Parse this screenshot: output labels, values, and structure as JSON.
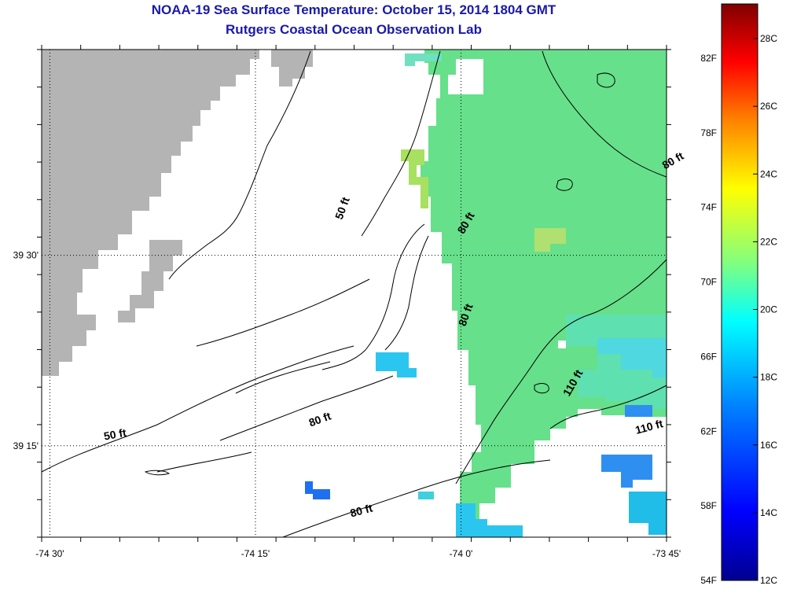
{
  "title": "NOAA-19 Sea Surface Temperature:  October 15, 2014 1804 GMT",
  "subtitle": "Rutgers Coastal Ocean Observation Lab",
  "axes": {
    "lon_ticks": [
      {
        "value": -74.5,
        "label": "-74 30'"
      },
      {
        "value": -74.25,
        "label": "-74 15'"
      },
      {
        "value": -74.0,
        "label": "-74 0'"
      },
      {
        "value": -73.75,
        "label": "-73 45'"
      }
    ],
    "lat_ticks": [
      {
        "value": 39.5,
        "label": "39 30'"
      },
      {
        "value": 39.25,
        "label": "39 15'"
      }
    ],
    "lon_range": [
      -74.51,
      -73.75
    ],
    "lat_range": [
      39.13,
      39.77
    ],
    "grid": "dotted"
  },
  "depth_labels": [
    {
      "text": "50 ft",
      "lon": -74.14,
      "lat": 39.56
    },
    {
      "text": "80 ft",
      "lon": -73.74,
      "lat": 39.62
    },
    {
      "text": "80 ft",
      "lon": -73.99,
      "lat": 39.54
    },
    {
      "text": "80 ft",
      "lon": -73.99,
      "lat": 39.42
    },
    {
      "text": "110 ft",
      "lon": -73.86,
      "lat": 39.33
    },
    {
      "text": "110 ft",
      "lon": -73.77,
      "lat": 39.27
    },
    {
      "text": "80 ft",
      "lon": -74.17,
      "lat": 39.28
    },
    {
      "text": "50 ft",
      "lon": -74.42,
      "lat": 39.26
    },
    {
      "text": "80 ft",
      "lon": -74.12,
      "lat": 39.16
    }
  ],
  "colorbar": {
    "fahrenheit_labels": [
      "82F",
      "78F",
      "74F",
      "70F",
      "66F",
      "62F",
      "58F",
      "54F"
    ],
    "celsius_labels": [
      "28C",
      "26C",
      "24C",
      "22C",
      "20C",
      "18C",
      "16C",
      "14C",
      "12C"
    ],
    "colors": [
      "#00008f",
      "#0000ff",
      "#0080ff",
      "#00ffff",
      "#80ff80",
      "#ffff00",
      "#ff8000",
      "#ff0000",
      "#800000"
    ],
    "range_c": [
      12,
      29
    ]
  },
  "colors": {
    "land": "#b4b4b4",
    "title": "#1a1aa8",
    "sst_dominant": "#66e08a"
  },
  "chart_data": {
    "type": "heatmap",
    "title": "NOAA-19 Sea Surface Temperature:  October 15, 2014 1804 GMT",
    "subtitle": "Rutgers Coastal Ocean Observation Lab",
    "x_ticks": [
      "-74 30'",
      "-74 15'",
      "-74 0'",
      "-73 45'"
    ],
    "y_ticks": [
      "39 30'",
      "39 15'"
    ],
    "value_range_c": [
      12,
      29
    ],
    "regions": [
      {
        "lon_min": -73.94,
        "lon_max": -73.75,
        "lat_min": 39.37,
        "lat_max": 39.77,
        "temp_c": 19.5
      },
      {
        "lon_min": -73.98,
        "lon_max": -73.75,
        "lat_min": 39.19,
        "lat_max": 39.37,
        "temp_c": 19.0
      },
      {
        "lon_min": -73.82,
        "lon_max": -73.75,
        "lat_min": 39.22,
        "lat_max": 39.26,
        "temp_c": 16.0
      },
      {
        "lon_min": -74.06,
        "lon_max": -74.0,
        "lat_min": 39.32,
        "lat_max": 39.35,
        "temp_c": 17.5
      }
    ]
  }
}
